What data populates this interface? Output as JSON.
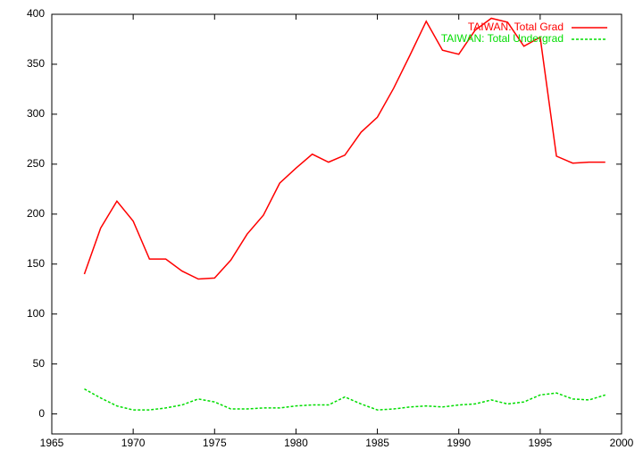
{
  "chart_data": {
    "type": "line",
    "x": [
      1967,
      1968,
      1969,
      1970,
      1971,
      1972,
      1973,
      1974,
      1975,
      1976,
      1977,
      1978,
      1979,
      1980,
      1981,
      1982,
      1983,
      1984,
      1985,
      1986,
      1987,
      1988,
      1989,
      1990,
      1991,
      1992,
      1993,
      1994,
      1995,
      1996,
      1997,
      1998,
      1999
    ],
    "series": [
      {
        "name": "TAIWAN: Total Grad",
        "color": "#ff0000",
        "dash": false,
        "values": [
          140,
          186,
          213,
          193,
          155,
          155,
          143,
          135,
          136,
          154,
          180,
          199,
          231,
          246,
          260,
          252,
          259,
          282,
          297,
          326,
          359,
          393,
          364,
          360,
          384,
          396,
          392,
          368,
          377,
          258,
          251,
          252,
          252
        ]
      },
      {
        "name": "TAIWAN: Total Undergrad",
        "color": "#00dd00",
        "dash": true,
        "values": [
          25,
          16,
          8,
          4,
          4,
          6,
          9,
          15,
          12,
          5,
          5,
          6,
          6,
          8,
          9,
          9,
          17,
          10,
          4,
          5,
          7,
          8,
          7,
          9,
          10,
          14,
          10,
          12,
          19,
          21,
          15,
          14,
          19
        ]
      }
    ],
    "xlim": [
      1965,
      2000
    ],
    "xticks": [
      1965,
      1970,
      1975,
      1980,
      1985,
      1990,
      1995,
      2000
    ],
    "ylim": [
      -20,
      400
    ],
    "yticks": [
      0,
      50,
      100,
      150,
      200,
      250,
      300,
      350,
      400
    ],
    "grid": false,
    "legend": "top-right"
  }
}
